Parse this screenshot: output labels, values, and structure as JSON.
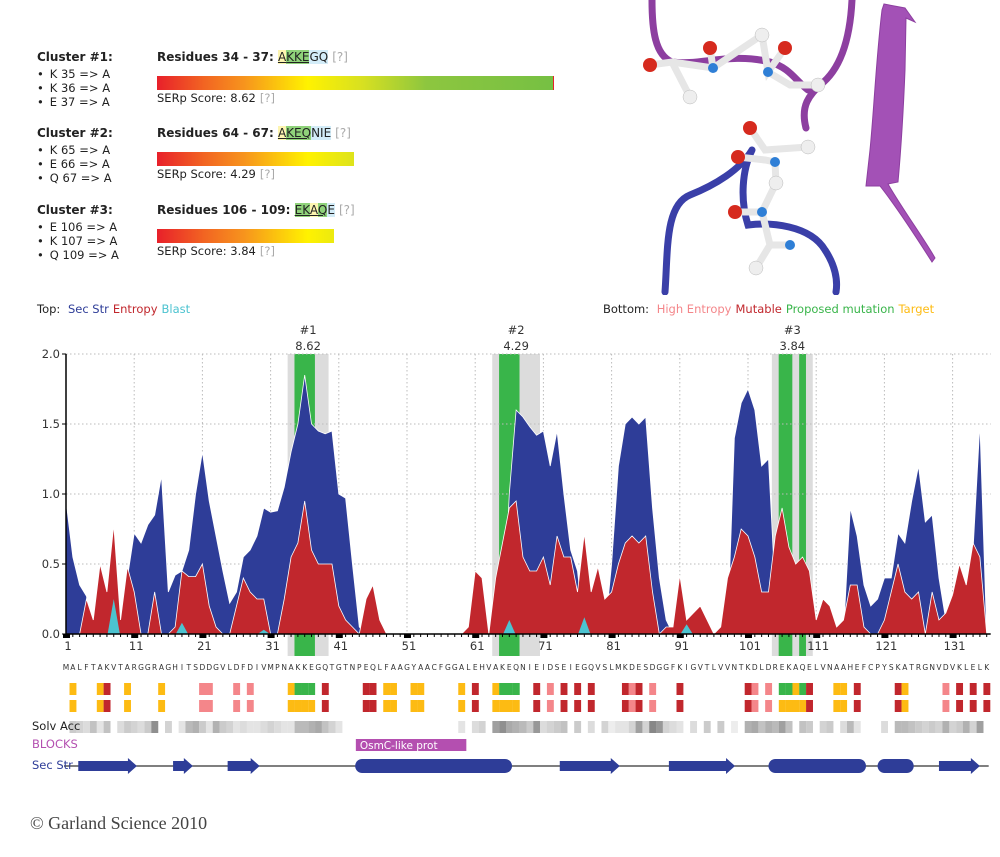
{
  "clusters": [
    {
      "title": "Cluster #1:",
      "mutations": [
        "K 35 => A",
        "K 36 => A",
        "E 37 => A"
      ],
      "residues_label": "Residues 34 - 37:",
      "segments": [
        {
          "t": "A",
          "bg": "#fdf5b0",
          "u": true
        },
        {
          "t": "KKE",
          "bg": "#8fd27a",
          "u": true
        },
        {
          "t": "GQ",
          "bg": "#d3ecf8",
          "u": false
        }
      ],
      "help": "[?]",
      "score_label": "SERp Score: 8.62",
      "score": 8.62,
      "score_help": "[?]"
    },
    {
      "title": "Cluster #2:",
      "mutations": [
        "K 65 => A",
        "E 66 => A",
        "Q 67 => A"
      ],
      "residues_label": "Residues 64 - 67:",
      "segments": [
        {
          "t": "A",
          "bg": "#fdf5b0",
          "u": true
        },
        {
          "t": "KEQ",
          "bg": "#8fd27a",
          "u": true
        },
        {
          "t": "NIE",
          "bg": "#d3ecf8",
          "u": false
        }
      ],
      "help": "[?]",
      "score_label": "SERp Score: 4.29",
      "score": 4.29,
      "score_help": "[?]"
    },
    {
      "title": "Cluster #3:",
      "mutations": [
        "E 106 => A",
        "K 107 => A",
        "Q 109 => A"
      ],
      "residues_label": "Residues 106 - 109:",
      "segments": [
        {
          "t": "EK",
          "bg": "#8fd27a",
          "u": true
        },
        {
          "t": "A",
          "bg": "#fdf5b0",
          "u": true
        },
        {
          "t": "Q",
          "bg": "#8fd27a",
          "u": true
        },
        {
          "t": "E",
          "bg": "#d3ecf8",
          "u": false
        }
      ],
      "help": "[?]",
      "score_label": "SERp Score: 3.84",
      "score": 3.84,
      "score_help": "[?]"
    }
  ],
  "legend_top": {
    "label": "Top:",
    "items": [
      {
        "text": "Sec Str",
        "color": "#2e3d98"
      },
      {
        "text": "Entropy",
        "color": "#c1272d"
      },
      {
        "text": "Blast",
        "color": "#4cc3d0"
      }
    ]
  },
  "legend_bottom": {
    "label": "Bottom:",
    "items": [
      {
        "text": "High Entropy",
        "color": "#f4868a"
      },
      {
        "text": "Mutable",
        "color": "#c1272d"
      },
      {
        "text": "Proposed mutation",
        "color": "#39b54a"
      },
      {
        "text": "Target",
        "color": "#fdbb13"
      }
    ]
  },
  "chart_data": {
    "type": "area",
    "xlim": [
      1,
      136
    ],
    "ylim": [
      0,
      2.0
    ],
    "yticks": [
      "0.0",
      "0.5",
      "1.0",
      "1.5",
      "2.0"
    ],
    "xticks": [
      1,
      11,
      21,
      31,
      41,
      51,
      61,
      71,
      81,
      91,
      101,
      111,
      121,
      131
    ],
    "grid": true,
    "series": [
      {
        "name": "Sec Str",
        "color": "#2e3d98",
        "values": [
          0.95,
          0.55,
          0.35,
          0.27,
          0.05,
          0,
          0,
          0,
          0,
          0.4,
          0.72,
          0.65,
          0.78,
          0.85,
          1.13,
          0.3,
          0.42,
          0.45,
          0.6,
          1.0,
          1.3,
          0.95,
          0.7,
          0.45,
          0.22,
          0.3,
          0.55,
          0.6,
          0.7,
          0.9,
          0.87,
          0.88,
          1.05,
          1.3,
          1.5,
          1.85,
          1.5,
          1.45,
          1.43,
          1.45,
          1.0,
          0.97,
          0.5,
          0.05,
          0,
          0,
          0,
          0,
          0,
          0,
          0,
          0,
          0,
          0,
          0,
          0,
          0,
          0,
          0,
          0,
          0,
          0,
          0,
          0,
          0,
          1.0,
          1.6,
          1.55,
          1.48,
          1.42,
          1.45,
          1.2,
          1.45,
          1.0,
          0.6,
          0.45,
          0,
          0,
          0,
          0,
          0.5,
          1.2,
          1.5,
          1.55,
          1.5,
          1.55,
          0.9,
          0.4,
          0.1,
          0,
          0,
          0,
          0,
          0,
          0,
          0,
          0,
          0,
          1.4,
          1.65,
          1.75,
          1.6,
          1.2,
          1.25,
          0.3,
          0,
          0,
          0,
          0,
          0,
          0,
          0,
          0,
          0,
          0,
          0.9,
          0.7,
          0.35,
          0.2,
          0.25,
          0.4,
          0.4,
          0.72,
          0.65,
          0.95,
          1.2,
          0.8,
          0.85,
          0.4,
          0.1,
          0.15,
          0.3,
          0.25,
          0.6,
          1.5,
          0
        ]
      },
      {
        "name": "Entropy",
        "color": "#c1272d",
        "values": [
          0,
          0,
          0,
          0.25,
          0.1,
          0.5,
          0.3,
          0.78,
          0.1,
          0.48,
          0.3,
          0,
          0,
          0.3,
          0,
          0,
          0.05,
          0.45,
          0.41,
          0.41,
          0.5,
          0.2,
          0.05,
          0,
          0,
          0.2,
          0.4,
          0.3,
          0.25,
          0.25,
          0,
          0,
          0.25,
          0.55,
          0.65,
          0.95,
          0.6,
          0.5,
          0.5,
          0.5,
          0.2,
          0.1,
          0.05,
          0,
          0.25,
          0.35,
          0.1,
          0,
          0,
          0,
          0,
          0,
          0,
          0,
          0,
          0,
          0,
          0,
          0,
          0.05,
          0.45,
          0.4,
          0,
          0.4,
          0.65,
          0.9,
          0.95,
          0.55,
          0.45,
          0.45,
          0.55,
          0.35,
          0.7,
          0.55,
          0.55,
          0.3,
          0.72,
          0.3,
          0.48,
          0.25,
          0.3,
          0.5,
          0.65,
          0.7,
          0.65,
          0.7,
          0.3,
          0,
          0.05,
          0.05,
          0.42,
          0.1,
          0.15,
          0.2,
          0.1,
          0,
          0.05,
          0.4,
          0.55,
          0.75,
          0.7,
          0.55,
          0.3,
          0.3,
          0.7,
          0.9,
          0.62,
          0.5,
          0.55,
          0.45,
          0.1,
          0.25,
          0.2,
          0.05,
          0.1,
          0.35,
          0.35,
          0.05,
          0,
          0,
          0.1,
          0.3,
          0.5,
          0.3,
          0.25,
          0.3,
          0,
          0.3,
          0.1,
          0.15,
          0.28,
          0.5,
          0.35,
          0.65,
          0.55,
          0
        ]
      },
      {
        "name": "Blast",
        "color": "#4cc3d0",
        "points": [
          [
            8,
            0.25
          ],
          [
            18,
            0.08
          ],
          [
            30,
            0.03
          ],
          [
            66,
            0.1
          ],
          [
            77,
            0.12
          ],
          [
            92,
            0.07
          ]
        ]
      }
    ],
    "clusters": [
      {
        "label": "#1",
        "score": "8.62",
        "window": [
          33.5,
          39.5
        ],
        "mutated": [
          [
            34.5,
            37.5
          ]
        ]
      },
      {
        "label": "#2",
        "score": "4.29",
        "window": [
          63.5,
          70.5
        ],
        "mutated": [
          [
            64.5,
            67.5
          ]
        ]
      },
      {
        "label": "#3",
        "score": "3.84",
        "window": [
          104.5,
          110.5
        ],
        "mutated": [
          [
            105.5,
            107.5
          ],
          [
            108.5,
            109.5
          ]
        ]
      }
    ]
  },
  "sequence": "MALFTAKVTARGGRAGHITSDDGVLDFDIVMPNAKKEGQTGTNPEQLFAAGYAACFGGALEHVAKEQNIEIDSEIEGQVSLMKDESDGGFKIGVTLVVNTKDLDREKAQELVNAAHEFCPYSKATRGNVDVKLELK",
  "track_colors": {
    "T": "#fdbb13",
    "H": "#f4868a",
    "M": "#c1272d",
    "P": "#39b54a"
  },
  "track_top": [
    [
      2,
      "T"
    ],
    [
      6,
      "T"
    ],
    [
      7,
      "M"
    ],
    [
      10,
      "T"
    ],
    [
      15,
      "T"
    ],
    [
      21,
      "H"
    ],
    [
      22,
      "H"
    ],
    [
      26,
      "H"
    ],
    [
      28,
      "H"
    ],
    [
      34,
      "T"
    ],
    [
      35,
      "P"
    ],
    [
      36,
      "P"
    ],
    [
      37,
      "P"
    ],
    [
      39,
      "M"
    ],
    [
      45,
      "M"
    ],
    [
      46,
      "M"
    ],
    [
      48,
      "T"
    ],
    [
      49,
      "T"
    ],
    [
      52,
      "T"
    ],
    [
      53,
      "T"
    ],
    [
      59,
      "T"
    ],
    [
      61,
      "M"
    ],
    [
      64,
      "T"
    ],
    [
      65,
      "P"
    ],
    [
      66,
      "P"
    ],
    [
      67,
      "P"
    ],
    [
      70,
      "M"
    ],
    [
      72,
      "H"
    ],
    [
      74,
      "M"
    ],
    [
      76,
      "M"
    ],
    [
      78,
      "M"
    ],
    [
      83,
      "M"
    ],
    [
      84,
      "H"
    ],
    [
      85,
      "M"
    ],
    [
      87,
      "H"
    ],
    [
      91,
      "M"
    ],
    [
      101,
      "M"
    ],
    [
      102,
      "H"
    ],
    [
      104,
      "H"
    ],
    [
      106,
      "P"
    ],
    [
      107,
      "P"
    ],
    [
      108,
      "T"
    ],
    [
      109,
      "P"
    ],
    [
      110,
      "M"
    ],
    [
      114,
      "T"
    ],
    [
      115,
      "T"
    ],
    [
      117,
      "M"
    ],
    [
      123,
      "M"
    ],
    [
      124,
      "T"
    ],
    [
      130,
      "H"
    ],
    [
      132,
      "M"
    ],
    [
      134,
      "M"
    ],
    [
      136,
      "M"
    ]
  ],
  "track_bottom": [
    [
      2,
      "T"
    ],
    [
      6,
      "T"
    ],
    [
      7,
      "M"
    ],
    [
      10,
      "T"
    ],
    [
      15,
      "T"
    ],
    [
      21,
      "H"
    ],
    [
      22,
      "H"
    ],
    [
      26,
      "H"
    ],
    [
      28,
      "H"
    ],
    [
      34,
      "T"
    ],
    [
      35,
      "T"
    ],
    [
      36,
      "T"
    ],
    [
      37,
      "T"
    ],
    [
      39,
      "M"
    ],
    [
      45,
      "M"
    ],
    [
      46,
      "M"
    ],
    [
      48,
      "T"
    ],
    [
      49,
      "T"
    ],
    [
      52,
      "T"
    ],
    [
      53,
      "T"
    ],
    [
      59,
      "T"
    ],
    [
      61,
      "M"
    ],
    [
      64,
      "T"
    ],
    [
      65,
      "T"
    ],
    [
      66,
      "T"
    ],
    [
      67,
      "T"
    ],
    [
      70,
      "M"
    ],
    [
      72,
      "H"
    ],
    [
      74,
      "M"
    ],
    [
      76,
      "M"
    ],
    [
      78,
      "M"
    ],
    [
      83,
      "M"
    ],
    [
      84,
      "H"
    ],
    [
      85,
      "M"
    ],
    [
      87,
      "H"
    ],
    [
      91,
      "M"
    ],
    [
      101,
      "M"
    ],
    [
      102,
      "H"
    ],
    [
      104,
      "H"
    ],
    [
      106,
      "T"
    ],
    [
      107,
      "T"
    ],
    [
      108,
      "T"
    ],
    [
      109,
      "T"
    ],
    [
      110,
      "M"
    ],
    [
      114,
      "T"
    ],
    [
      115,
      "T"
    ],
    [
      117,
      "M"
    ],
    [
      123,
      "M"
    ],
    [
      124,
      "T"
    ],
    [
      130,
      "H"
    ],
    [
      132,
      "M"
    ],
    [
      134,
      "M"
    ],
    [
      136,
      "M"
    ]
  ],
  "solv_acc": {
    "label": "Solv Acc",
    "values": [
      0,
      0.25,
      0.2,
      0.15,
      0.3,
      0.1,
      0.3,
      0,
      0.15,
      0.25,
      0.2,
      0.15,
      0.25,
      0.6,
      0,
      0.2,
      0,
      0.1,
      0.35,
      0.4,
      0.25,
      0.1,
      0.4,
      0.25,
      0.2,
      0.1,
      0.15,
      0.1,
      0.1,
      0.15,
      0.2,
      0.15,
      0.1,
      0.1,
      0.35,
      0.35,
      0.4,
      0.45,
      0.3,
      0.2,
      0.1,
      0,
      0,
      0,
      0,
      0,
      0,
      0,
      0,
      0,
      0,
      0,
      0,
      0,
      0,
      0,
      0,
      0,
      0.1,
      0,
      0.15,
      0.2,
      0,
      0.5,
      0.6,
      0.45,
      0.4,
      0.35,
      0.25,
      0.55,
      0.15,
      0.2,
      0.25,
      0.3,
      0,
      0.25,
      0,
      0.15,
      0,
      0.2,
      0.05,
      0.1,
      0.1,
      0.2,
      0.5,
      0.2,
      0.65,
      0.55,
      0.2,
      0.15,
      0.1,
      0,
      0.15,
      0,
      0.25,
      0,
      0.25,
      0,
      0.05,
      0,
      0.4,
      0.45,
      0.3,
      0.4,
      0.35,
      0.5,
      0.3,
      0,
      0.3,
      0.25,
      0,
      0.2,
      0.25,
      0,
      0.15,
      0.35,
      0.1,
      0,
      0,
      0,
      0.15,
      0,
      0.35,
      0.35,
      0.3,
      0.25,
      0.2,
      0.25,
      0.2,
      0.4,
      0.2,
      0.25,
      0.4,
      0.2,
      0.5,
      0
    ]
  },
  "blocks": {
    "label": "BLOCKS",
    "color": "#b44fb0",
    "items": [
      {
        "text": "OsmC-like prot",
        "range": [
          43.5,
          59.7
        ]
      }
    ]
  },
  "sec_str": {
    "label": "Sec Str",
    "color": "#2e3d98",
    "elements": [
      {
        "type": "strand",
        "range": [
          2.8,
          11.4
        ]
      },
      {
        "type": "strand",
        "range": [
          16.7,
          19.6
        ]
      },
      {
        "type": "strand",
        "range": [
          24.7,
          29.4
        ]
      },
      {
        "type": "helix",
        "range": [
          43.4,
          66.4
        ]
      },
      {
        "type": "strand",
        "range": [
          73.4,
          82.2
        ]
      },
      {
        "type": "strand",
        "range": [
          89.4,
          99.1
        ]
      },
      {
        "type": "helix",
        "range": [
          104,
          118.3
        ]
      },
      {
        "type": "helix",
        "range": [
          120,
          125.3
        ]
      },
      {
        "type": "strand",
        "range": [
          129,
          135
        ]
      }
    ]
  },
  "copyright": "© Garland Science 2010"
}
